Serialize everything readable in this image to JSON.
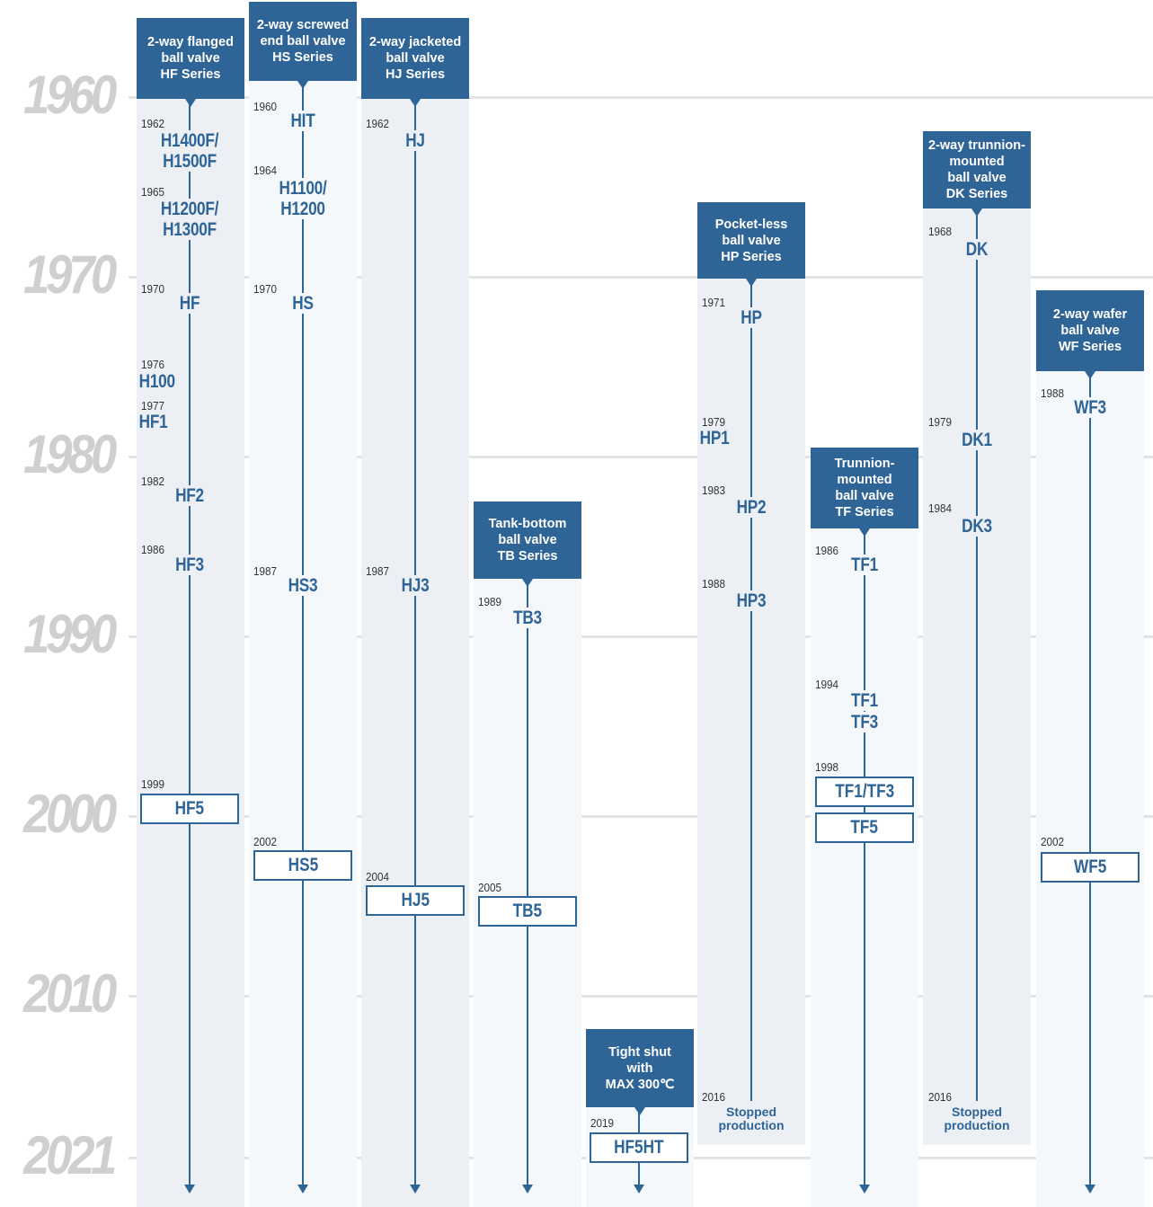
{
  "years": [
    "1960",
    "1970",
    "1980",
    "1990",
    "2000",
    "2010",
    "2021"
  ],
  "columns": [
    {
      "id": "hf",
      "header": [
        "2-way flanged",
        "ball valve",
        "HF Series"
      ],
      "events": [
        {
          "date": "1962",
          "model": "H1400F/\nH1500F"
        },
        {
          "date": "1965",
          "model": "H1200F/\nH1300F"
        },
        {
          "date": "1970",
          "model": "HF"
        },
        {
          "date": "1976",
          "model": "H100"
        },
        {
          "date": "1977",
          "model": "HF1"
        },
        {
          "date": "1982",
          "model": "HF2"
        },
        {
          "date": "1986",
          "model": "HF3"
        },
        {
          "date": "1999",
          "model": "HF5",
          "boxed": true
        }
      ]
    },
    {
      "id": "hs",
      "header": [
        "2-way screwed",
        "end ball valve",
        "HS Series"
      ],
      "events": [
        {
          "date": "1960",
          "model": "HIT"
        },
        {
          "date": "1964",
          "model": "H1100/\nH1200"
        },
        {
          "date": "1970",
          "model": "HS"
        },
        {
          "date": "1987",
          "model": "HS3"
        },
        {
          "date": "2002",
          "model": "HS5",
          "boxed": true
        }
      ]
    },
    {
      "id": "hj",
      "header": [
        "2-way jacketed",
        "ball valve",
        "HJ Series"
      ],
      "events": [
        {
          "date": "1962",
          "model": "HJ"
        },
        {
          "date": "1987",
          "model": "HJ3"
        },
        {
          "date": "2004",
          "model": "HJ5",
          "boxed": true
        }
      ]
    },
    {
      "id": "tb",
      "header": [
        "Tank-bottom",
        "ball valve",
        "TB Series"
      ],
      "events": [
        {
          "date": "1989",
          "model": "TB3"
        },
        {
          "date": "2005",
          "model": "TB5",
          "boxed": true
        }
      ]
    },
    {
      "id": "ht",
      "header": [
        "Tight shut",
        "with",
        "MAX 300℃"
      ],
      "events": [
        {
          "date": "2019",
          "model": "HF5HT",
          "boxed": true
        }
      ]
    },
    {
      "id": "hp",
      "header": [
        "Pocket-less",
        "ball valve",
        "HP Series"
      ],
      "events": [
        {
          "date": "1971",
          "model": "HP"
        },
        {
          "date": "1979",
          "model": "HP1"
        },
        {
          "date": "1983",
          "model": "HP2"
        },
        {
          "date": "1988",
          "model": "HP3"
        },
        {
          "date": "2016",
          "stopped": "Stopped\nproduction"
        }
      ]
    },
    {
      "id": "tf",
      "header": [
        "Trunnion-",
        "mounted",
        "ball valve",
        "TF Series"
      ],
      "events": [
        {
          "date": "1986",
          "model": "TF1"
        },
        {
          "date": "1994",
          "model": "TF1"
        },
        {
          "model": "TF3"
        },
        {
          "date": "1998",
          "model": "TF1/TF3",
          "boxed": true
        },
        {
          "model": "TF5",
          "boxed": true
        }
      ]
    },
    {
      "id": "dk",
      "header": [
        "2-way trunnion-",
        "mounted",
        "ball valve",
        "DK Series"
      ],
      "events": [
        {
          "date": "1968",
          "model": "DK"
        },
        {
          "date": "1979",
          "model": "DK1"
        },
        {
          "date": "1984",
          "model": "DK3"
        },
        {
          "date": "2016",
          "stopped": "Stopped\nproduction"
        }
      ]
    },
    {
      "id": "wf",
      "header": [
        "2-way wafer",
        "ball valve",
        "WF Series"
      ],
      "events": [
        {
          "date": "1988",
          "model": "WF3"
        },
        {
          "date": "2002",
          "model": "WF5",
          "boxed": true
        }
      ]
    }
  ]
}
